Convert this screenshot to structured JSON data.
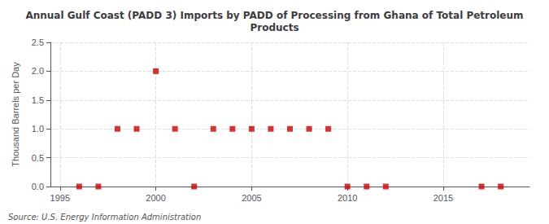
{
  "chart_data": {
    "type": "scatter",
    "title": "Annual Gulf Coast (PADD 3) Imports by PADD of Processing from Ghana of Total Petroleum\nProducts",
    "ylabel": "Thousand Barrels per Day",
    "annotation": "Source: U.S. Energy Information Administration",
    "x": [
      1996,
      1997,
      1998,
      1999,
      2000,
      2001,
      2002,
      2003,
      2004,
      2005,
      2006,
      2007,
      2008,
      2009,
      2010,
      2011,
      2012,
      2017,
      2018
    ],
    "values": [
      0,
      0,
      1,
      1,
      2,
      1,
      0,
      1,
      1,
      1,
      1,
      1,
      1,
      1,
      0,
      0,
      0,
      0,
      0
    ],
    "color": "#cc0000",
    "marker": "square",
    "xlim": [
      1994.5,
      2019.5
    ],
    "xticks": [
      1995,
      2000,
      2005,
      2010,
      2015
    ],
    "ylim": [
      0,
      2.5
    ],
    "yticks": [
      {
        "value": 0,
        "label": "0.0"
      },
      0.5,
      {
        "value": 1,
        "label": "1.0"
      },
      1.5,
      {
        "value": 2,
        "label": "2.0"
      },
      2.5
    ],
    "grid": true
  }
}
